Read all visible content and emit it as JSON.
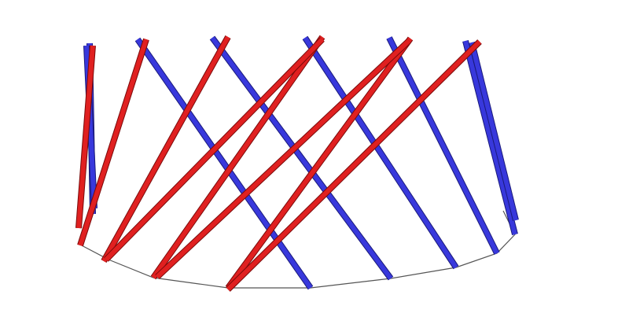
{
  "diagram": {
    "subject": "",
    "colors": {
      "background": "#ffffff",
      "blue_member": "#3838dc",
      "blue_edge": "#1a1a7a",
      "red_member": "#e02020",
      "red_edge": "#7a0a0a",
      "base_ring": "#555555"
    },
    "blue_member_count": 8,
    "red_member_count": 8
  }
}
